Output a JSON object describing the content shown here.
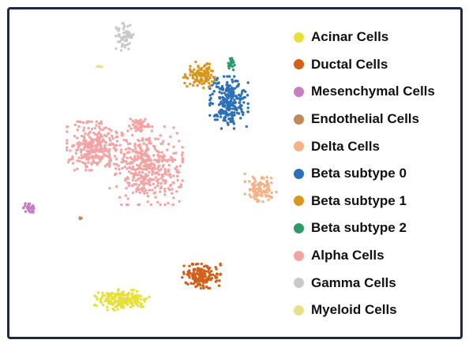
{
  "chart_data": {
    "type": "scatter",
    "title": "",
    "xlabel": "",
    "ylabel": "",
    "axes_visible": false,
    "grid": false,
    "legend_position": "right",
    "series": [
      {
        "name": "Acinar Cells",
        "color": "#e8e03a",
        "clusters": [
          {
            "cx": 155,
            "cy": 380,
            "rx": 32,
            "ry": 12,
            "n": 180
          }
        ]
      },
      {
        "name": "Ductal Cells",
        "color": "#d2601a",
        "clusters": [
          {
            "cx": 255,
            "cy": 350,
            "rx": 22,
            "ry": 14,
            "n": 150
          }
        ]
      },
      {
        "name": "Mesenchymal Cells",
        "color": "#c77cc4",
        "clusters": [
          {
            "cx": 38,
            "cy": 264,
            "rx": 8,
            "ry": 10,
            "n": 30
          }
        ]
      },
      {
        "name": "Endothelial Cells",
        "color": "#c08a5a",
        "clusters": [
          {
            "cx": 102,
            "cy": 277,
            "rx": 2,
            "ry": 2,
            "n": 4
          }
        ]
      },
      {
        "name": "Delta Cells",
        "color": "#f4b286",
        "clusters": [
          {
            "cx": 330,
            "cy": 238,
            "rx": 18,
            "ry": 16,
            "n": 110
          }
        ]
      },
      {
        "name": "Beta subtype 0",
        "color": "#2c70b8",
        "clusters": [
          {
            "cx": 290,
            "cy": 130,
            "rx": 22,
            "ry": 30,
            "n": 260
          }
        ]
      },
      {
        "name": "Beta subtype 1",
        "color": "#d9951c",
        "clusters": [
          {
            "cx": 252,
            "cy": 95,
            "rx": 18,
            "ry": 15,
            "n": 110
          }
        ]
      },
      {
        "name": "Beta subtype 2",
        "color": "#2e9a6b",
        "clusters": [
          {
            "cx": 293,
            "cy": 80,
            "rx": 6,
            "ry": 8,
            "n": 25
          }
        ]
      },
      {
        "name": "Alpha Cells",
        "color": "#f4a3a3",
        "clusters": [
          {
            "cx": 120,
            "cy": 185,
            "rx": 32,
            "ry": 28,
            "n": 280
          },
          {
            "cx": 185,
            "cy": 210,
            "rx": 42,
            "ry": 45,
            "n": 420
          },
          {
            "cx": 175,
            "cy": 158,
            "rx": 12,
            "ry": 10,
            "n": 40
          }
        ]
      },
      {
        "name": "Gamma Cells",
        "color": "#c9c9c9",
        "clusters": [
          {
            "cx": 158,
            "cy": 47,
            "rx": 10,
            "ry": 16,
            "n": 60
          }
        ]
      },
      {
        "name": "Myeloid Cells",
        "color": "#e6e28a",
        "clusters": [
          {
            "cx": 126,
            "cy": 85,
            "rx": 3,
            "ry": 2,
            "n": 4
          }
        ]
      }
    ]
  }
}
